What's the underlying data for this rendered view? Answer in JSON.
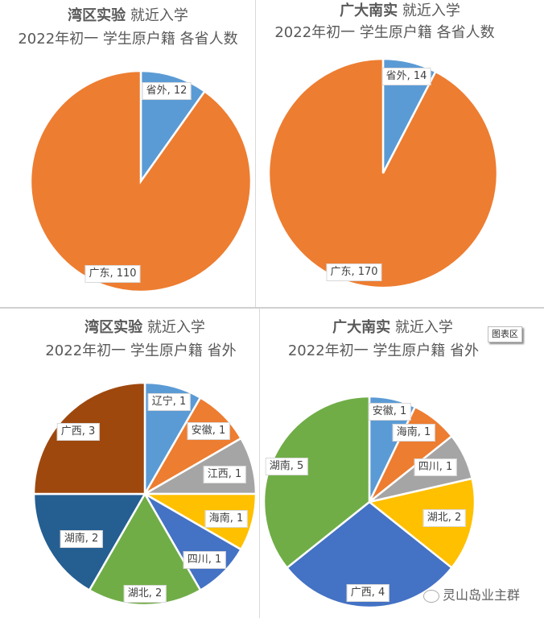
{
  "colors": {
    "blue": "#5B9BD5",
    "orange": "#ED7D31",
    "gray": "#A5A5A5",
    "yellow": "#FFC000",
    "darkblue": "#4472C4",
    "green": "#70AD47",
    "navy": "#255E91",
    "brown": "#9E480E"
  },
  "panels": {
    "tl": {
      "title_bold": "湾区实验",
      "title_rest": "就近入学",
      "subtitle": "2022年初一  学生原户籍  各省人数"
    },
    "tr": {
      "title_bold": "广大南实",
      "title_rest": "就近入学",
      "subtitle": "2022年初一  学生原户籍  各省人数"
    },
    "bl": {
      "title_bold": "湾区实验",
      "title_rest": "就近入学",
      "subtitle": "2022年初一  学生原户籍  省外"
    },
    "br": {
      "title_bold": "广大南实",
      "title_rest": "就近入学",
      "subtitle": "2022年初一  学生原户籍  省外"
    }
  },
  "tooltip": "图表区",
  "watermark": "灵山岛业主群",
  "chart_data": [
    {
      "type": "pie",
      "title": "湾区实验 就近入学 2022年初一 学生原户籍 各省人数",
      "categories": [
        "省外",
        "广东"
      ],
      "values": [
        12,
        110
      ],
      "colors": [
        "#5B9BD5",
        "#ED7D31"
      ],
      "labels": [
        "省外, 12",
        "广东, 110"
      ]
    },
    {
      "type": "pie",
      "title": "广大南实 就近入学 2022年初一 学生原户籍 各省人数",
      "categories": [
        "省外",
        "广东"
      ],
      "values": [
        14,
        170
      ],
      "colors": [
        "#5B9BD5",
        "#ED7D31"
      ],
      "labels": [
        "省外, 14",
        "广东, 170"
      ]
    },
    {
      "type": "pie",
      "title": "湾区实验 就近入学 2022年初一 学生原户籍 省外",
      "categories": [
        "辽宁",
        "安徽",
        "江西",
        "海南",
        "四川",
        "湖北",
        "湖南",
        "广西"
      ],
      "values": [
        1,
        1,
        1,
        1,
        1,
        2,
        2,
        3
      ],
      "colors": [
        "#5B9BD5",
        "#ED7D31",
        "#A5A5A5",
        "#FFC000",
        "#4472C4",
        "#70AD47",
        "#255E91",
        "#9E480E"
      ],
      "labels": [
        "辽宁, 1",
        "安徽, 1",
        "江西, 1",
        "海南, 1",
        "四川, 1",
        "湖北, 2",
        "湖南, 2",
        "广西, 3"
      ]
    },
    {
      "type": "pie",
      "title": "广大南实 就近入学 2022年初一 学生原户籍 省外",
      "categories": [
        "安徽",
        "海南",
        "四川",
        "湖北",
        "广西",
        "湖南"
      ],
      "values": [
        1,
        1,
        1,
        2,
        4,
        5
      ],
      "colors": [
        "#5B9BD5",
        "#ED7D31",
        "#A5A5A5",
        "#FFC000",
        "#4472C4",
        "#70AD47"
      ],
      "labels": [
        "安徽, 1",
        "海南, 1",
        "四川, 1",
        "湖北, 2",
        "广西, 4",
        "湖南, 5"
      ]
    }
  ]
}
